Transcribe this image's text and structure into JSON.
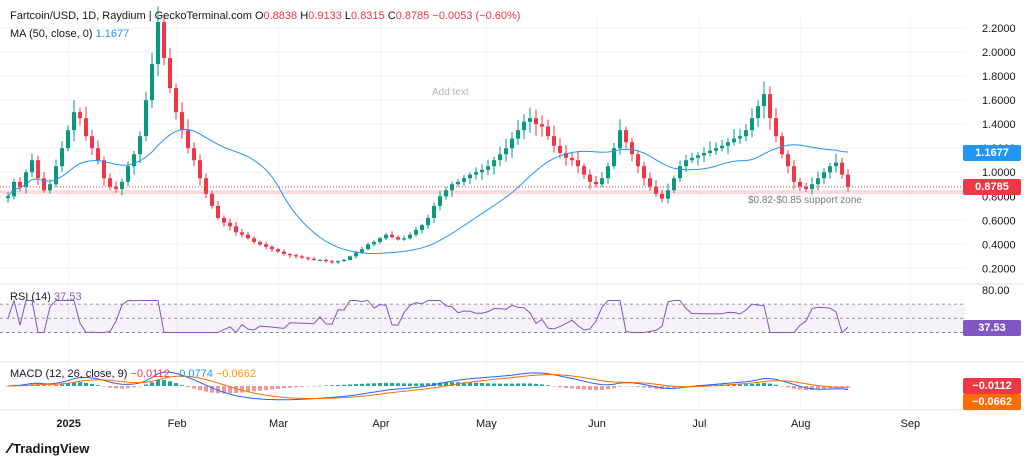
{
  "legend": {
    "title": "Fartcoin/USD, 1D, Raydium | GeckoTerminal.com",
    "o_label": "O",
    "o_value": "0.8838",
    "h_label": "H",
    "h_value": "0.9133",
    "l_label": "L",
    "l_value": "0.8315",
    "c_label": "C",
    "c_value": "0.8785",
    "change": "−0.0053 (−0.60%)",
    "ma_label": "MA (50, close, 0)",
    "ma_value": "1.1677",
    "rsi_label": "RSI (14)",
    "rsi_value": "37.53",
    "macd_label": "MACD (12, 26, close, 9)",
    "macd_v1": "−0.0112",
    "macd_v2": "−0.0774",
    "macd_v3": "−0.0662"
  },
  "annotations": {
    "add_text": "Add text",
    "support_zone": "$0.82-$0.85 support zone"
  },
  "badges": {
    "ma": "1.1677",
    "price": "0.8785",
    "rsi": "37.53",
    "macd_a": "−0.0112",
    "macd_b": "−0.0662"
  },
  "branding": "TradingView",
  "colors": {
    "up": "#089981",
    "down": "#f23645",
    "ma": "#2196f3",
    "rsi": "#7e57c2",
    "macd": "#2962ff",
    "signal": "#ff6d00"
  },
  "chart_data": {
    "type": "candlestick",
    "y_ticks": [
      "2.2000",
      "2.0000",
      "1.8000",
      "1.6000",
      "1.4000",
      "1.2000",
      "1.0000",
      "0.8000",
      "0.6000",
      "0.4000",
      "0.2000"
    ],
    "y_range": [
      0.12,
      2.3
    ],
    "x_labels": [
      "2025",
      "Feb",
      "Mar",
      "Apr",
      "May",
      "Jun",
      "Jul",
      "Aug",
      "Sep"
    ],
    "rsi_tick": "80.00",
    "rsi_levels": [
      70,
      50,
      30
    ],
    "support_zone": [
      0.82,
      0.85
    ],
    "close_series": [
      0.8,
      0.92,
      0.88,
      1.0,
      1.1,
      0.95,
      0.85,
      0.9,
      1.05,
      1.2,
      1.35,
      1.5,
      1.45,
      1.3,
      1.2,
      1.1,
      0.95,
      0.88,
      0.86,
      0.92,
      1.05,
      1.15,
      1.3,
      1.6,
      1.9,
      2.25,
      1.95,
      1.7,
      1.5,
      1.35,
      1.2,
      1.1,
      0.95,
      0.82,
      0.72,
      0.62,
      0.58,
      0.55,
      0.5,
      0.48,
      0.45,
      0.42,
      0.4,
      0.38,
      0.36,
      0.34,
      0.32,
      0.31,
      0.3,
      0.29,
      0.28,
      0.27,
      0.27,
      0.26,
      0.25,
      0.26,
      0.27,
      0.3,
      0.33,
      0.36,
      0.4,
      0.42,
      0.45,
      0.48,
      0.46,
      0.44,
      0.45,
      0.48,
      0.52,
      0.56,
      0.62,
      0.72,
      0.8,
      0.85,
      0.9,
      0.92,
      0.95,
      0.98,
      1.0,
      1.02,
      1.05,
      1.1,
      1.15,
      1.2,
      1.28,
      1.35,
      1.42,
      1.45,
      1.4,
      1.38,
      1.3,
      1.22,
      1.16,
      1.12,
      1.1,
      1.05,
      0.98,
      0.92,
      0.9,
      0.95,
      1.05,
      1.2,
      1.35,
      1.25,
      1.15,
      1.05,
      0.95,
      0.88,
      0.82,
      0.78,
      0.85,
      0.95,
      1.05,
      1.1,
      1.12,
      1.14,
      1.16,
      1.18,
      1.2,
      1.22,
      1.25,
      1.28,
      1.3,
      1.35,
      1.45,
      1.55,
      1.65,
      1.45,
      1.3,
      1.15,
      1.05,
      0.92,
      0.88,
      0.86,
      0.9,
      0.95,
      1.0,
      1.05,
      1.08,
      0.98,
      0.8785
    ],
    "ma50_value": 1.1677,
    "last": {
      "open": 0.8838,
      "high": 0.9133,
      "low": 0.8315,
      "close": 0.8785
    }
  }
}
